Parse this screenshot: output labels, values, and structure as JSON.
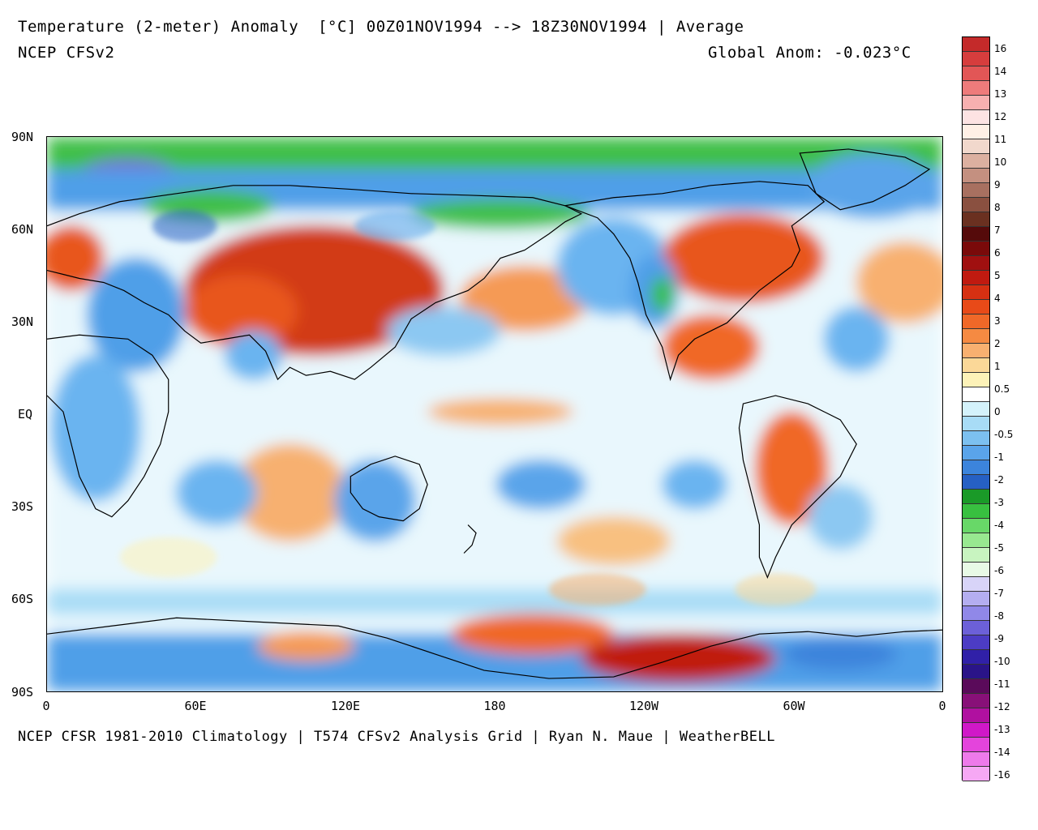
{
  "header": {
    "title": "Temperature (2-meter) Anomaly  [°C] 00Z01NOV1994 --> 18Z30NOV1994 | Average",
    "model": "NCEP CFSv2",
    "global_anomaly": "Global Anom: -0.023°C"
  },
  "footer": {
    "credits": "NCEP CFSR 1981-2010 Climatology | T574 CFSv2 Analysis Grid | Ryan N. Maue | WeatherBELL"
  },
  "map": {
    "lat_labels": [
      "90N",
      "60N",
      "30N",
      "EQ",
      "30S",
      "60S",
      "90S"
    ],
    "lon_labels": [
      "0",
      "60E",
      "120E",
      "180",
      "120W",
      "60W",
      "0"
    ],
    "ocean_color": "#ffffff",
    "coastline_color": "#000000"
  },
  "colorbar": {
    "labels": [
      "16",
      "14",
      "13",
      "12",
      "11",
      "10",
      "9",
      "8",
      "7",
      "6",
      "5",
      "4",
      "3",
      "2",
      "1",
      "0.5",
      "0",
      "-0.5",
      "-1",
      "-2",
      "-3",
      "-4",
      "-5",
      "-6",
      "-7",
      "-8",
      "-9",
      "-10",
      "-11",
      "-12",
      "-13",
      "-14",
      "-16"
    ],
    "colors": [
      "#c42a2a",
      "#d63d3d",
      "#e25656",
      "#ee7b7b",
      "#f7b0b0",
      "#fde3e3",
      "#fff0e6",
      "#f1d8cc",
      "#dcb0a0",
      "#c49080",
      "#a87060",
      "#8a5040",
      "#6a3020",
      "#550a0a",
      "#7a0a0a",
      "#a01010",
      "#c01a10",
      "#d63012",
      "#e84a18",
      "#f06828",
      "#f58a42",
      "#f8b070",
      "#fbd898",
      "#fdf2b8",
      "#ffffff",
      "#d4f2fb",
      "#a8dcf6",
      "#7cc0f0",
      "#5aa4ea",
      "#3c84dc",
      "#2660c4",
      "#1a9a28",
      "#38c040",
      "#68d868",
      "#98e890",
      "#c8f4c0",
      "#e8fae6",
      "#d8d4f8",
      "#b4aef0",
      "#9088e8",
      "#6c60d8",
      "#4c3cc4",
      "#3020a8",
      "#2a1488",
      "#5a0a5a",
      "#881078",
      "#b010a0",
      "#d018c8",
      "#e444dc",
      "#ee7aea",
      "#f6a8f4"
    ]
  }
}
